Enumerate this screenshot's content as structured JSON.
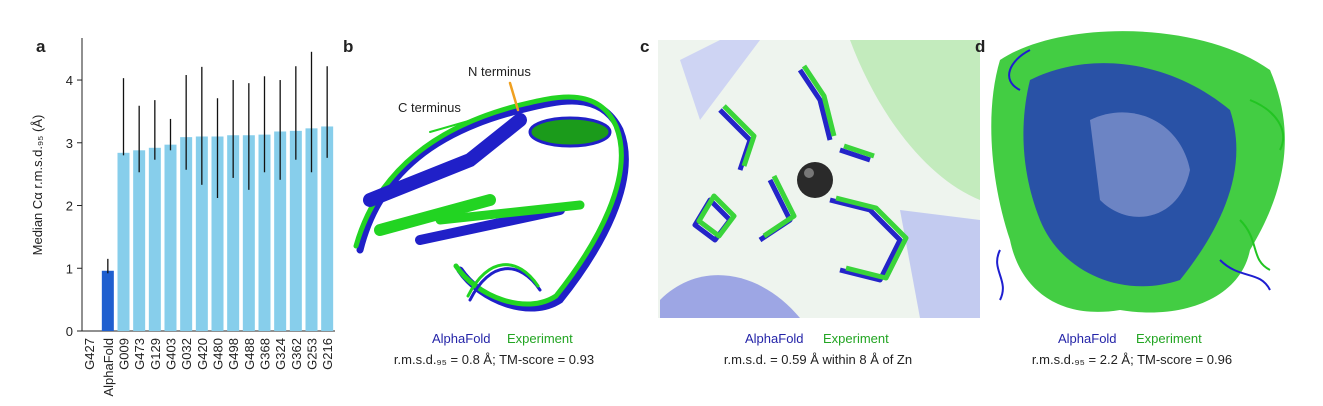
{
  "chart_data": {
    "type": "bar",
    "label": "a",
    "ylabel": "Median Cα r.m.s.d.₉₅ (Å)",
    "categories": [
      [
        "G427",
        "AlphaFold"
      ],
      "G009",
      "G473",
      "G129",
      "G403",
      "G032",
      "G420",
      "G480",
      "G498",
      "G488",
      "G368",
      "G324",
      "G362",
      "G253",
      "G216"
    ],
    "values": [
      0.96,
      2.84,
      2.88,
      2.92,
      2.97,
      3.09,
      3.1,
      3.1,
      3.12,
      3.12,
      3.13,
      3.18,
      3.19,
      3.23,
      3.26
    ],
    "error_low": [
      0.92,
      2.8,
      2.53,
      2.73,
      2.88,
      2.57,
      2.33,
      2.12,
      2.44,
      2.25,
      2.53,
      2.41,
      2.73,
      2.53,
      2.76
    ],
    "error_high": [
      1.15,
      4.03,
      3.59,
      3.68,
      3.38,
      4.08,
      4.21,
      3.71,
      4.0,
      3.95,
      4.06,
      4.0,
      4.22,
      4.45,
      4.22
    ],
    "colors": [
      "#1f5fcf",
      "#87ceeb",
      "#87ceeb",
      "#87ceeb",
      "#87ceeb",
      "#87ceeb",
      "#87ceeb",
      "#87ceeb",
      "#87ceeb",
      "#87ceeb",
      "#87ceeb",
      "#87ceeb",
      "#87ceeb",
      "#87ceeb",
      "#87ceeb"
    ],
    "ylim": [
      0,
      4.67
    ],
    "yticks": [
      0,
      1,
      2,
      3,
      4
    ]
  },
  "panels": [
    {
      "label": "b",
      "annotations": [
        "N terminus",
        "C terminus"
      ],
      "legend": [
        "AlphaFold",
        "Experiment"
      ],
      "caption": "r.m.s.d.₉₅ = 0.8 Å; TM-score = 0.93"
    },
    {
      "label": "c",
      "legend": [
        "AlphaFold",
        "Experiment"
      ],
      "caption": "r.m.s.d. = 0.59 Å within 8 Å of Zn"
    },
    {
      "label": "d",
      "legend": [
        "AlphaFold",
        "Experiment"
      ],
      "caption": "r.m.s.d.₉₅ = 2.2 Å; TM-score = 0.96"
    }
  ]
}
